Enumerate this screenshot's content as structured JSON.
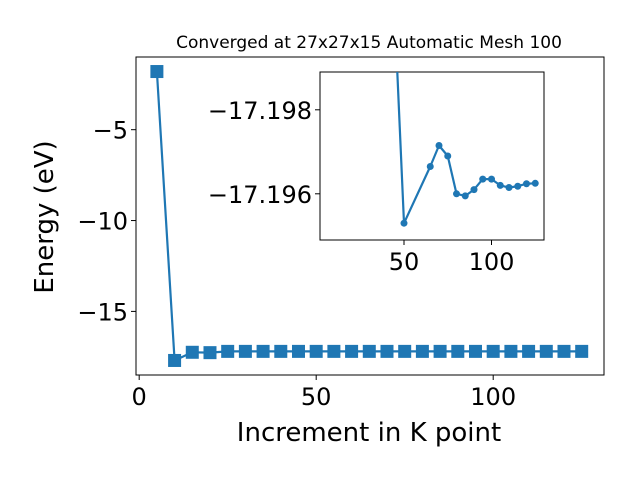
{
  "chart_data": [
    {
      "type": "line",
      "title": "Converged at 27x27x15 Automatic Mesh 100",
      "xlabel": "Increment in K point",
      "ylabel": "Energy (eV)",
      "xlim": [
        -0.9,
        131.3
      ],
      "ylim": [
        -18.5,
        -1.0
      ],
      "xticks": [
        0,
        50,
        100
      ],
      "xtick_labels": [
        "0",
        "50",
        "100"
      ],
      "yticks": [
        -5,
        -10,
        -15
      ],
      "ytick_labels": [
        "−5",
        "−10",
        "−15"
      ],
      "marker": "square",
      "color": "#1f77b4",
      "grid": false,
      "series": [
        {
          "x": [
            5,
            10,
            15,
            20,
            25,
            30,
            35,
            40,
            45,
            50,
            55,
            60,
            65,
            70,
            75,
            80,
            85,
            90,
            95,
            100,
            105,
            110,
            115,
            120,
            125
          ],
          "y": [
            -1.8,
            -17.7,
            -17.25,
            -17.27,
            -17.2,
            -17.2,
            -17.2,
            -17.2,
            -17.2,
            -17.2,
            -17.2,
            -17.2,
            -17.2,
            -17.2,
            -17.2,
            -17.2,
            -17.2,
            -17.2,
            -17.2,
            -17.2,
            -17.2,
            -17.2,
            -17.2,
            -17.2,
            -17.2
          ]
        }
      ]
    },
    {
      "type": "line",
      "title": "",
      "xlabel": "",
      "ylabel": "",
      "xlim": [
        2,
        130
      ],
      "ylim": [
        -17.1989,
        -17.1949
      ],
      "yaxis_inverted": true,
      "xticks": [
        50,
        100
      ],
      "xtick_labels": [
        "50",
        "100"
      ],
      "yticks": [
        -17.198,
        -17.196
      ],
      "ytick_labels": [
        "−17.198",
        "−17.196"
      ],
      "marker": "circle",
      "color": "#1f77b4",
      "grid": false,
      "series": [
        {
          "x": [
            45,
            50,
            65,
            70,
            75,
            80,
            85,
            90,
            95,
            100,
            105,
            110,
            115,
            120,
            125
          ],
          "y": [
            -17.2,
            -17.1953,
            -17.19665,
            -17.19715,
            -17.1969,
            -17.196,
            -17.19595,
            -17.1961,
            -17.19635,
            -17.19635,
            -17.1962,
            -17.19615,
            -17.19618,
            -17.19624,
            -17.19625
          ]
        }
      ]
    }
  ]
}
